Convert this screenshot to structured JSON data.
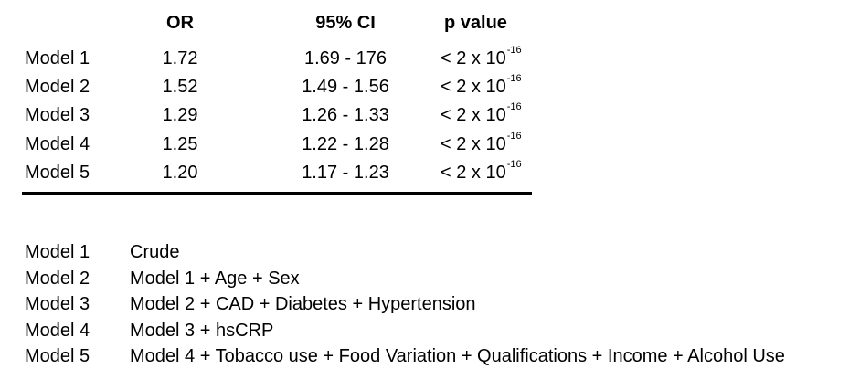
{
  "chart_data": {
    "type": "table",
    "columns": [
      "",
      "OR",
      "95% CI",
      "p value"
    ],
    "rows": [
      {
        "model": "Model 1",
        "or": "1.72",
        "ci": "1.69 - 176",
        "p_base": "< 2 x 10",
        "p_exp": "-16"
      },
      {
        "model": "Model 2",
        "or": "1.52",
        "ci": "1.49 - 1.56",
        "p_base": "< 2 x 10",
        "p_exp": "-16"
      },
      {
        "model": "Model 3",
        "or": "1.29",
        "ci": "1.26 - 1.33",
        "p_base": "< 2 x 10",
        "p_exp": "-16"
      },
      {
        "model": "Model 4",
        "or": "1.25",
        "ci": "1.22 - 1.28",
        "p_base": "< 2 x 10",
        "p_exp": "-16"
      },
      {
        "model": "Model 5",
        "or": "1.20",
        "ci": "1.17 - 1.23",
        "p_base": "< 2 x 10",
        "p_exp": "-16"
      }
    ],
    "legend": [
      {
        "name": "Model 1",
        "description": "Crude"
      },
      {
        "name": "Model 2",
        "description": "Model 1 + Age + Sex"
      },
      {
        "name": "Model 3",
        "description": "Model 2 + CAD + Diabetes + Hypertension"
      },
      {
        "name": "Model 4",
        "description": "Model 3 + hsCRP"
      },
      {
        "name": "Model 5",
        "description": "Model 4 + Tobacco use + Food Variation + Qualifications + Income + Alcohol Use"
      }
    ]
  }
}
